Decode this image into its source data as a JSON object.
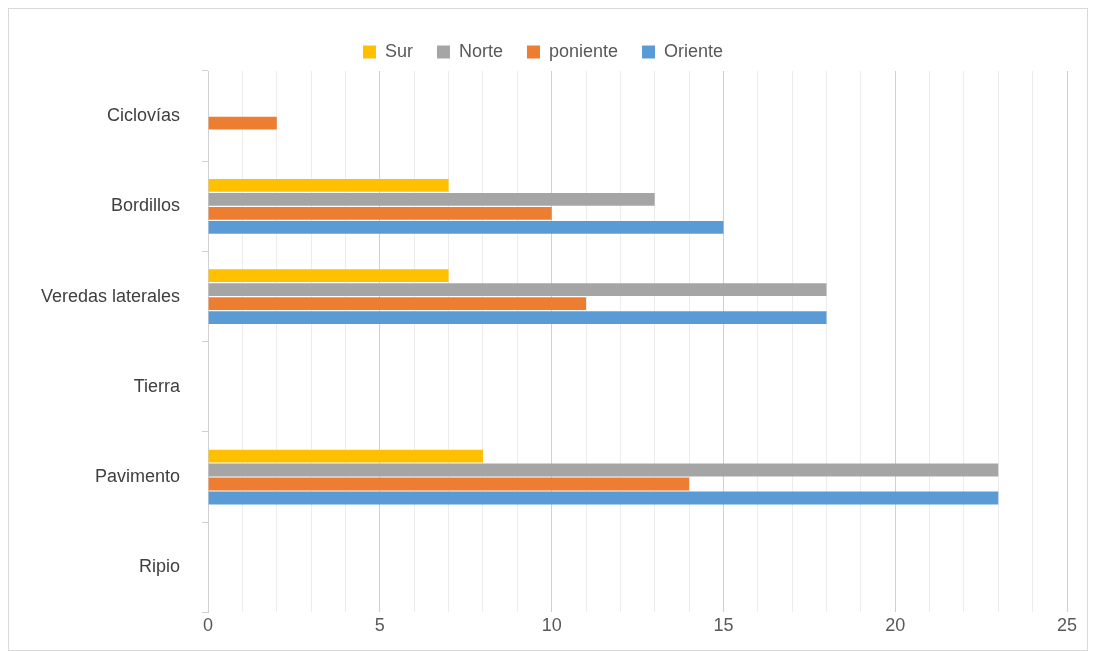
{
  "chart_data": {
    "type": "bar",
    "orientation": "horizontal",
    "categories": [
      "Ciclovías",
      "Bordillos",
      "Veredas laterales",
      "Tierra",
      "Pavimento",
      "Ripio"
    ],
    "series": [
      {
        "name": "Sur",
        "color": "#ffc000",
        "values": [
          null,
          7,
          7,
          null,
          8,
          null
        ]
      },
      {
        "name": "Norte",
        "color": "#a5a5a5",
        "values": [
          null,
          13,
          18,
          null,
          23,
          null
        ]
      },
      {
        "name": "poniente",
        "color": "#ed7d31",
        "values": [
          2,
          10,
          11,
          null,
          14,
          null
        ]
      },
      {
        "name": "Oriente",
        "color": "#5b9bd5",
        "values": [
          null,
          15,
          18,
          null,
          23,
          null
        ]
      }
    ],
    "xlim": [
      0,
      25
    ],
    "xticks": [
      0,
      {
        "value": 1,
        "label": null
      },
      {
        "value": 2,
        "label": null
      },
      {
        "value": 3,
        "label": null
      },
      {
        "value": 4,
        "label": null
      },
      5,
      {
        "value": 6,
        "label": null
      },
      {
        "value": 7,
        "label": null
      },
      {
        "value": 8,
        "label": null
      },
      {
        "value": 9,
        "label": null
      },
      10,
      {
        "value": 11,
        "label": null
      },
      {
        "value": 12,
        "label": null
      },
      {
        "value": 13,
        "label": null
      },
      {
        "value": 14,
        "label": null
      },
      15,
      {
        "value": 16,
        "label": null
      },
      {
        "value": 17,
        "label": null
      },
      {
        "value": 18,
        "label": null
      },
      {
        "value": 19,
        "label": null
      },
      20,
      {
        "value": 21,
        "label": null
      },
      {
        "value": 22,
        "label": null
      },
      {
        "value": 23,
        "label": null
      },
      {
        "value": 24,
        "label": null
      },
      25
    ],
    "grid": "x",
    "legend": "top"
  }
}
